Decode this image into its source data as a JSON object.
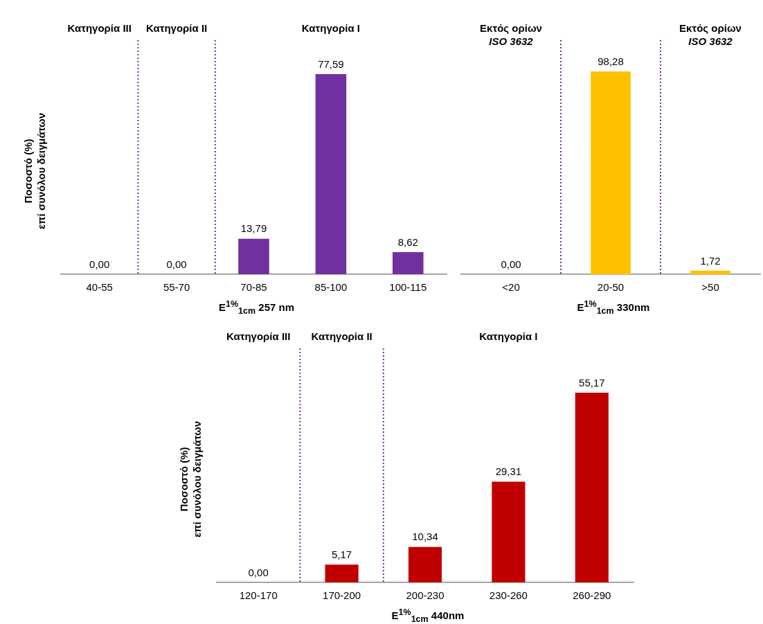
{
  "chart_data": [
    {
      "type": "bar",
      "ylabel": "Ποσοστό (%)\nεπί συνόλου δειγμάτων",
      "xlabel": "E$^{1%}$$_{1cm}$ 257 nm",
      "categories": [
        "40-55",
        "55-70",
        "70-85",
        "85-100",
        "100-115"
      ],
      "values": [
        0,
        0,
        13.79,
        77.59,
        8.62
      ],
      "color": "#7030a0",
      "value_labels": [
        "0,00",
        "0,00",
        "13,79",
        "77,59",
        "8,62"
      ],
      "grid": false,
      "legend": false,
      "annotations": [
        "Κατηγορία III",
        "Κατηγορία II",
        "Κατηγορία I"
      ]
    },
    {
      "type": "bar",
      "xlabel": "E$^{1%}$$_{1cm}$ 330nm",
      "categories": [
        "<20",
        "20-50",
        ">50"
      ],
      "values": [
        0,
        98.28,
        1.72
      ],
      "color": "#ffc000",
      "value_labels": [
        "0,00",
        "98,28",
        "1,72"
      ],
      "grid": false,
      "legend": false,
      "annotations": [
        "Εκτός ορίων\nISO 3632",
        "Εκτός ορίων\nISO 3632"
      ]
    },
    {
      "type": "bar",
      "ylabel": "Ποσοστό (%)\nεπί συνόλου δειγμάτων",
      "xlabel": "E$^{1%}$$_{1cm}$ 440nm",
      "categories": [
        "120-170",
        "170-200",
        "200-230",
        "230-260",
        "260-290"
      ],
      "values": [
        0,
        5.17,
        10.34,
        29.31,
        55.17
      ],
      "color": "#c00000",
      "value_labels": [
        "0,00",
        "5,17",
        "10,34",
        "29,31",
        "55,17"
      ],
      "grid": false,
      "legend": false,
      "annotations": [
        "Κατηγορία III",
        "Κατηγορία II",
        "Κατηγορία I"
      ]
    }
  ]
}
